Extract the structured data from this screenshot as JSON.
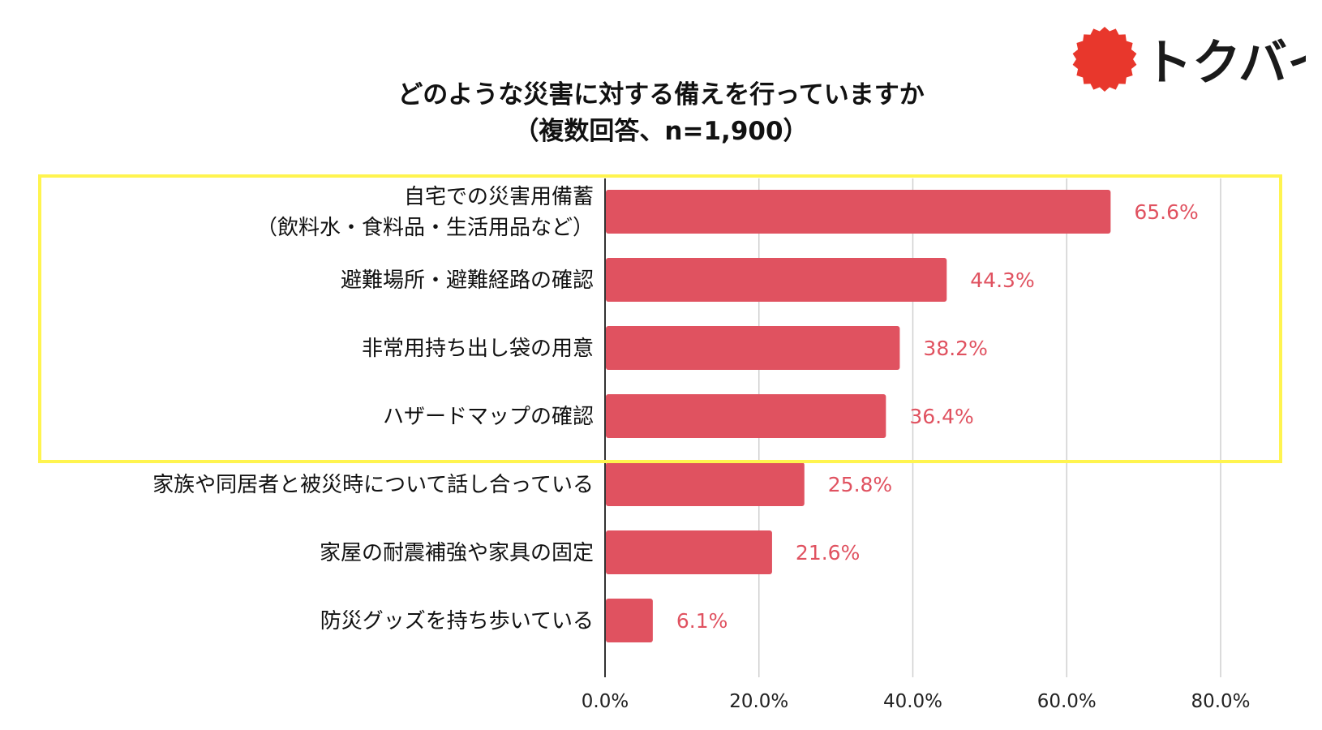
{
  "brand": {
    "name": "トクバイ",
    "accent_color": "#E8372C"
  },
  "chart_data": {
    "type": "bar",
    "orientation": "horizontal",
    "title": "どのような災害に対する備えを行っていますか",
    "subtitle": "（複数回答、n=1,900）",
    "categories": [
      [
        "自宅での災害用備蓄",
        "（飲料水・食料品・生活用品など）"
      ],
      [
        "避難場所・避難経路の確認"
      ],
      [
        "非常用持ち出し袋の用意"
      ],
      [
        "ハザードマップの確認"
      ],
      [
        "家族や同居者と被災時について話し合っている"
      ],
      [
        "家屋の耐震補強や家具の固定"
      ],
      [
        "防災グッズを持ち歩いている"
      ]
    ],
    "values": [
      65.6,
      44.3,
      38.2,
      36.4,
      25.8,
      21.6,
      6.1
    ],
    "value_labels": [
      "65.6%",
      "44.3%",
      "38.2%",
      "36.4%",
      "25.8%",
      "21.6%",
      "6.1%"
    ],
    "xlim": [
      0,
      80
    ],
    "x_ticks": [
      "0.0%",
      "20.0%",
      "40.0%",
      "60.0%",
      "80.0%"
    ],
    "x_tick_values": [
      0,
      20,
      40,
      60,
      80
    ],
    "xlabel": "",
    "ylabel": "",
    "grid": true,
    "bar_color": "#E05260",
    "label_color": "#E05260",
    "highlight": {
      "first_index": 0,
      "last_index": 3,
      "color": "#FFF44F"
    }
  }
}
